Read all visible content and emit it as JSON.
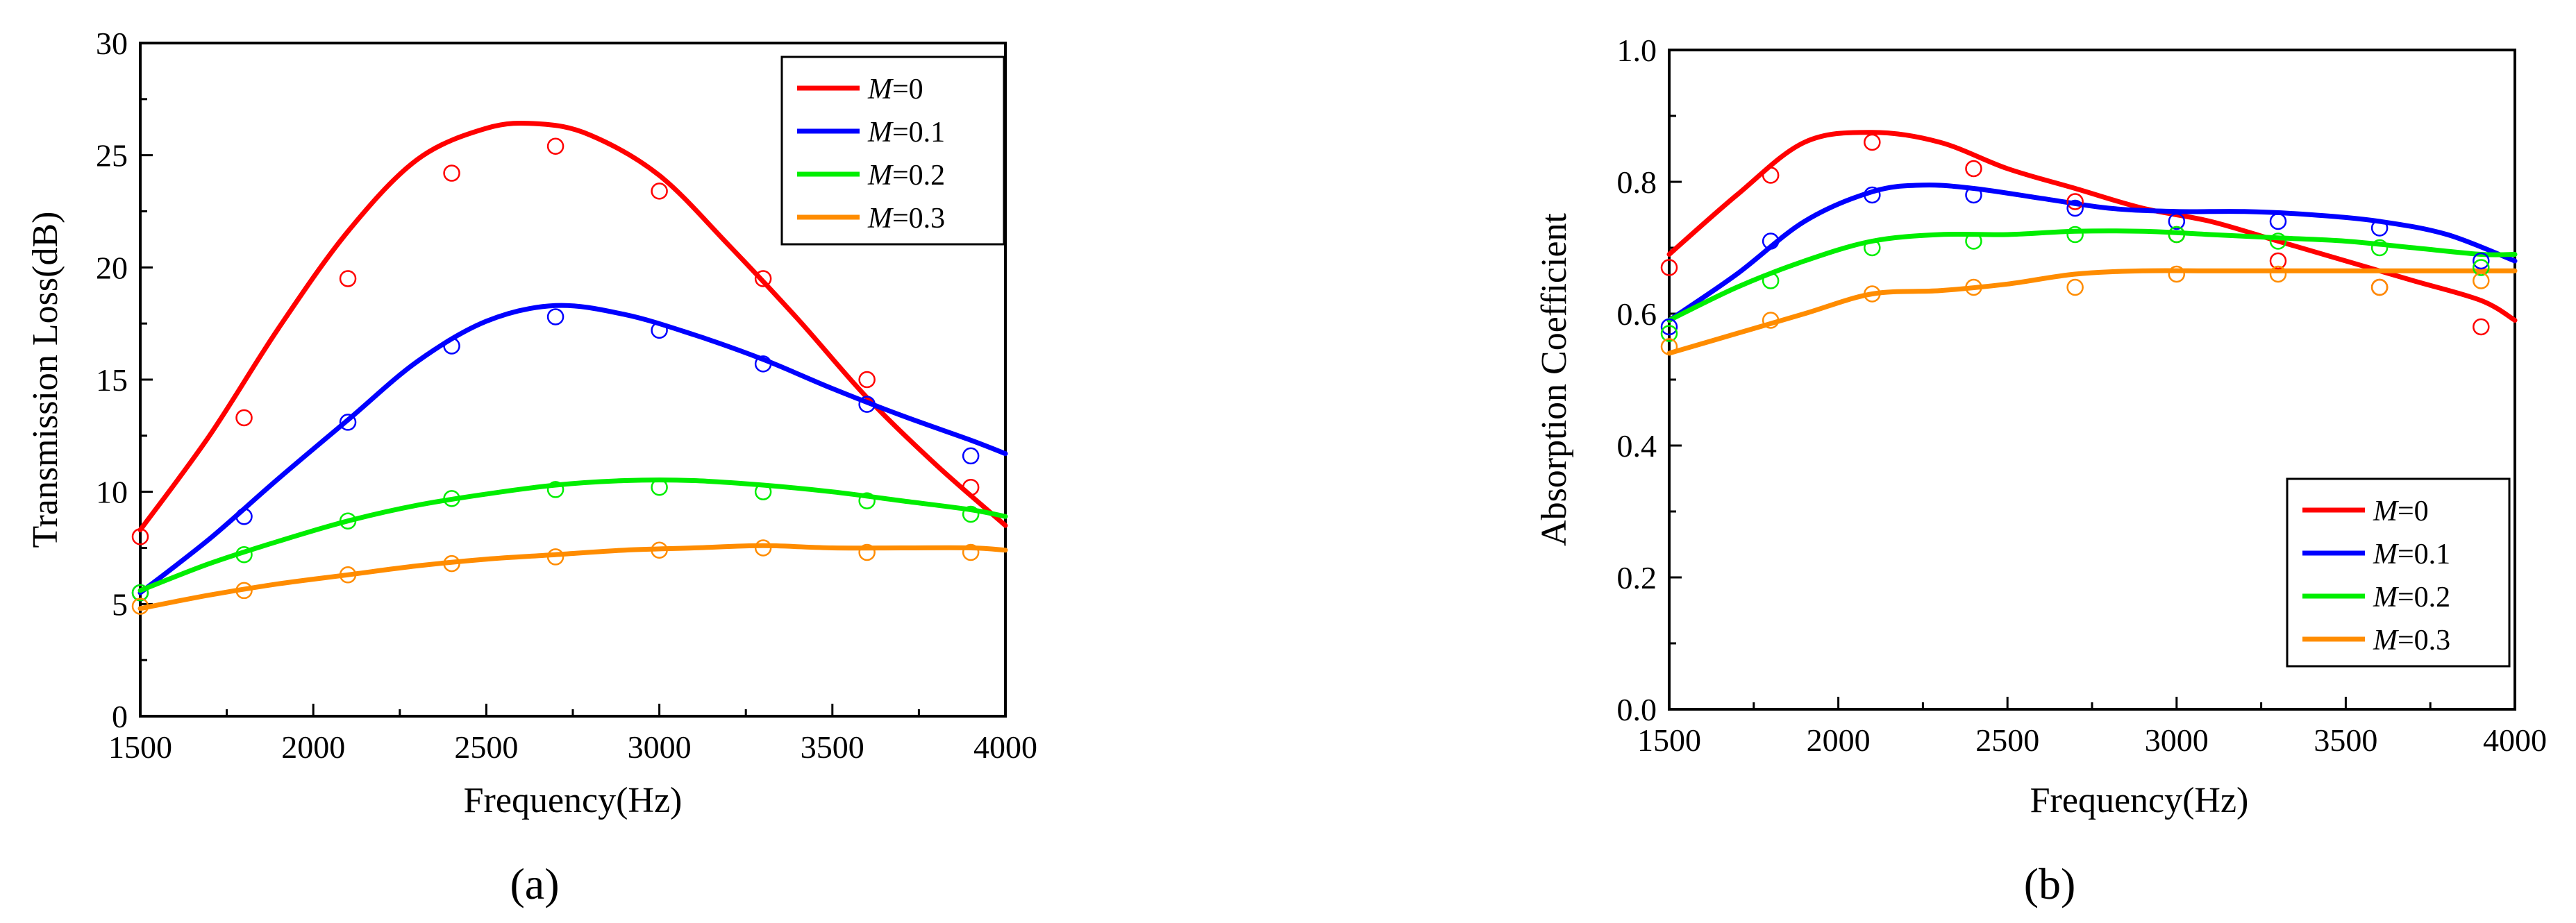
{
  "chart_data": [
    {
      "type": "line",
      "panel_label": "(a)",
      "xlabel": "Frequency(Hz)",
      "ylabel": "Transmission Loss(dB)",
      "xlim": [
        1500,
        4000
      ],
      "ylim": [
        0,
        30
      ],
      "xticks": [
        1500,
        2000,
        2500,
        3000,
        3500,
        4000
      ],
      "yticks": [
        0,
        5,
        10,
        15,
        20,
        25,
        30
      ],
      "legend_position": "top-right",
      "series": [
        {
          "name": "M=0",
          "label_italic": "M",
          "label_rest": "=0",
          "color": "#ff0000",
          "line_x": [
            1500,
            1700,
            1900,
            2100,
            2300,
            2500,
            2650,
            2800,
            3000,
            3200,
            3400,
            3600,
            3800,
            4000
          ],
          "line_y": [
            8.3,
            12.5,
            17.3,
            21.6,
            24.8,
            26.2,
            26.4,
            25.9,
            24.1,
            21.0,
            17.7,
            14.2,
            11.2,
            8.5
          ],
          "points_x": [
            1500,
            1800,
            2100,
            2400,
            2700,
            3000,
            3300,
            3600,
            3900
          ],
          "points_y": [
            8.0,
            13.3,
            19.5,
            24.2,
            25.4,
            23.4,
            19.5,
            15.0,
            10.2
          ]
        },
        {
          "name": "M=0.1",
          "label_italic": "M",
          "label_rest": "=0.1",
          "color": "#0000ff",
          "line_x": [
            1500,
            1700,
            1900,
            2100,
            2300,
            2500,
            2700,
            2900,
            3100,
            3300,
            3500,
            3700,
            3900,
            4000
          ],
          "line_y": [
            5.5,
            7.9,
            10.6,
            13.2,
            15.8,
            17.6,
            18.3,
            17.9,
            17.0,
            15.9,
            14.6,
            13.4,
            12.3,
            11.7
          ],
          "points_x": [
            1500,
            1800,
            2100,
            2400,
            2700,
            3000,
            3300,
            3600,
            3900
          ],
          "points_y": [
            5.5,
            8.9,
            13.1,
            16.5,
            17.8,
            17.2,
            15.7,
            13.9,
            11.6
          ]
        },
        {
          "name": "M=0.2",
          "label_italic": "M",
          "label_rest": "=0.2",
          "color": "#00ee00",
          "line_x": [
            1500,
            1700,
            1900,
            2100,
            2300,
            2500,
            2700,
            2900,
            3100,
            3300,
            3500,
            3700,
            3900,
            4000
          ],
          "line_y": [
            5.6,
            6.8,
            7.8,
            8.7,
            9.4,
            9.9,
            10.3,
            10.5,
            10.5,
            10.3,
            10.0,
            9.6,
            9.2,
            8.9
          ],
          "points_x": [
            1500,
            1800,
            2100,
            2400,
            2700,
            3000,
            3300,
            3600,
            3900
          ],
          "points_y": [
            5.5,
            7.2,
            8.7,
            9.7,
            10.1,
            10.2,
            10.0,
            9.6,
            9.0
          ]
        },
        {
          "name": "M=0.3",
          "label_italic": "M",
          "label_rest": "=0.3",
          "color": "#ff8c00",
          "line_x": [
            1500,
            1700,
            1900,
            2100,
            2300,
            2500,
            2700,
            2900,
            3100,
            3300,
            3500,
            3700,
            3900,
            4000
          ],
          "line_y": [
            4.8,
            5.4,
            5.9,
            6.3,
            6.7,
            7.0,
            7.2,
            7.4,
            7.5,
            7.6,
            7.5,
            7.5,
            7.5,
            7.4
          ],
          "points_x": [
            1500,
            1800,
            2100,
            2400,
            2700,
            3000,
            3300,
            3600,
            3900
          ],
          "points_y": [
            4.9,
            5.6,
            6.3,
            6.8,
            7.1,
            7.4,
            7.5,
            7.3,
            7.3
          ]
        }
      ]
    },
    {
      "type": "line",
      "panel_label": "(b)",
      "xlabel": "Frequency(Hz)",
      "ylabel": "Absorption Coefficient",
      "xlim": [
        1500,
        4000
      ],
      "ylim": [
        0.0,
        1.0
      ],
      "xticks": [
        1500,
        2000,
        2500,
        3000,
        3500,
        4000
      ],
      "yticks": [
        "0.0",
        "0.2",
        "0.4",
        "0.6",
        "0.8",
        "1.0"
      ],
      "legend_position": "bottom-right",
      "series": [
        {
          "name": "M=0",
          "label_italic": "M",
          "label_rest": "=0",
          "color": "#ff0000",
          "line_x": [
            1500,
            1700,
            1900,
            2100,
            2300,
            2500,
            2700,
            2900,
            3100,
            3300,
            3500,
            3700,
            3900,
            4000
          ],
          "line_y": [
            0.69,
            0.78,
            0.86,
            0.875,
            0.86,
            0.82,
            0.79,
            0.76,
            0.74,
            0.71,
            0.68,
            0.65,
            0.62,
            0.59
          ],
          "points_x": [
            1500,
            1800,
            2100,
            2400,
            2700,
            3000,
            3300,
            3600,
            3900
          ],
          "points_y": [
            0.67,
            0.81,
            0.86,
            0.82,
            0.77,
            0.72,
            0.68,
            0.64,
            0.58
          ]
        },
        {
          "name": "M=0.1",
          "label_italic": "M",
          "label_rest": "=0.1",
          "color": "#0000ff",
          "line_x": [
            1500,
            1700,
            1900,
            2100,
            2250,
            2400,
            2600,
            2800,
            3000,
            3200,
            3400,
            3600,
            3800,
            4000
          ],
          "line_y": [
            0.59,
            0.66,
            0.74,
            0.785,
            0.795,
            0.79,
            0.775,
            0.76,
            0.755,
            0.755,
            0.75,
            0.74,
            0.72,
            0.68
          ],
          "points_x": [
            1500,
            1800,
            2100,
            2400,
            2700,
            3000,
            3300,
            3600,
            3900
          ],
          "points_y": [
            0.58,
            0.71,
            0.78,
            0.78,
            0.76,
            0.74,
            0.74,
            0.73,
            0.68
          ]
        },
        {
          "name": "M=0.2",
          "label_italic": "M",
          "label_rest": "=0.2",
          "color": "#00ee00",
          "line_x": [
            1500,
            1700,
            1900,
            2100,
            2300,
            2500,
            2700,
            2900,
            3100,
            3300,
            3500,
            3700,
            3900,
            4000
          ],
          "line_y": [
            0.59,
            0.64,
            0.68,
            0.71,
            0.72,
            0.72,
            0.725,
            0.725,
            0.72,
            0.715,
            0.71,
            0.7,
            0.69,
            0.69
          ],
          "points_x": [
            1500,
            1800,
            2100,
            2400,
            2700,
            3000,
            3300,
            3600,
            3900
          ],
          "points_y": [
            0.57,
            0.65,
            0.7,
            0.71,
            0.72,
            0.72,
            0.71,
            0.7,
            0.67
          ]
        },
        {
          "name": "M=0.3",
          "label_italic": "M",
          "label_rest": "=0.3",
          "color": "#ff8c00",
          "line_x": [
            1500,
            1700,
            1900,
            2100,
            2300,
            2500,
            2700,
            2900,
            3100,
            3300,
            3500,
            3700,
            3900,
            4000
          ],
          "line_y": [
            0.54,
            0.57,
            0.6,
            0.63,
            0.635,
            0.645,
            0.66,
            0.665,
            0.665,
            0.665,
            0.665,
            0.665,
            0.665,
            0.665
          ],
          "points_x": [
            1500,
            1800,
            2100,
            2400,
            2700,
            3000,
            3300,
            3600,
            3900
          ],
          "points_y": [
            0.55,
            0.59,
            0.63,
            0.64,
            0.64,
            0.66,
            0.66,
            0.64,
            0.65
          ]
        }
      ]
    }
  ]
}
